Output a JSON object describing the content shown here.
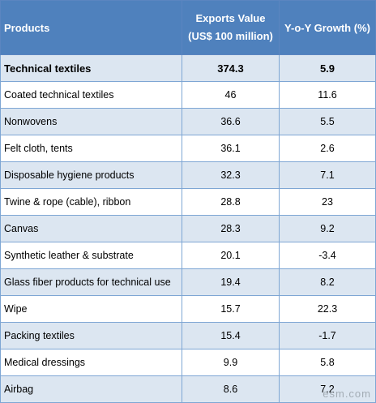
{
  "header": {
    "products": "Products",
    "exports_line1": "Exports Value",
    "exports_line2": "(US$ 100 million)",
    "growth": "Y-o-Y Growth (%)"
  },
  "rows": [
    {
      "product": "Technical textiles",
      "exports": "374.3",
      "growth": "5.9"
    },
    {
      "product": "Coated technical textiles",
      "exports": "46",
      "growth": "11.6"
    },
    {
      "product": "Nonwovens",
      "exports": "36.6",
      "growth": "5.5"
    },
    {
      "product": "Felt cloth, tents",
      "exports": "36.1",
      "growth": "2.6"
    },
    {
      "product": "Disposable hygiene products",
      "exports": "32.3",
      "growth": "7.1"
    },
    {
      "product": "Twine & rope (cable), ribbon",
      "exports": "28.8",
      "growth": "23"
    },
    {
      "product": "Canvas",
      "exports": "28.3",
      "growth": "9.2"
    },
    {
      "product": "Synthetic leather & substrate",
      "exports": "20.1",
      "growth": "-3.4"
    },
    {
      "product": "Glass fiber products for technical use",
      "exports": "19.4",
      "growth": "8.2"
    },
    {
      "product": "Wipe",
      "exports": "15.7",
      "growth": "22.3"
    },
    {
      "product": "Packing textiles",
      "exports": "15.4",
      "growth": "-1.7"
    },
    {
      "product": "Medical dressings",
      "exports": "9.9",
      "growth": "5.8"
    },
    {
      "product": "Airbag",
      "exports": "8.6",
      "growth": "7.2"
    }
  ],
  "watermark": "esm.com",
  "colors": {
    "header_bg": "#4f81bd",
    "band_bg": "#dce6f1",
    "border": "#7ea6d4"
  }
}
